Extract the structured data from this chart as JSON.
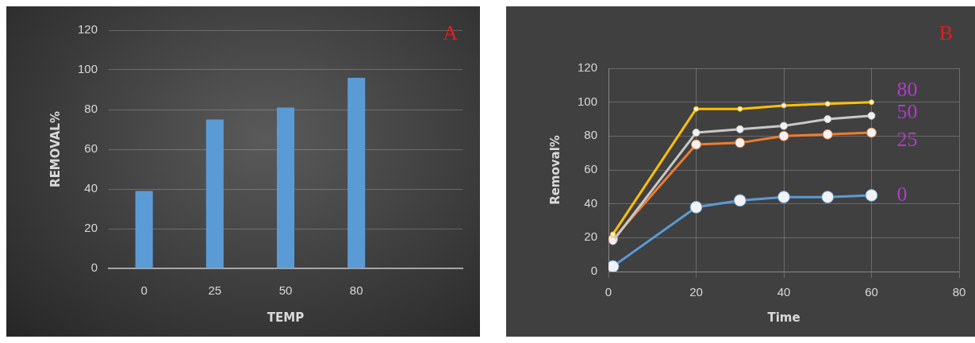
{
  "chart_data": [
    {
      "type": "bar",
      "xlabel": "TEMP",
      "ylabel": "REMOVAL%",
      "annotations": [
        "A"
      ],
      "categories": [
        "0",
        "25",
        "50",
        "80",
        null
      ],
      "values": [
        39,
        75,
        81,
        96,
        null
      ],
      "color": "#5b9bd5",
      "ylim": [
        0,
        120
      ],
      "yticks": [
        0,
        20,
        40,
        60,
        80,
        100,
        120
      ],
      "grid": "y",
      "legend": false
    },
    {
      "type": "line",
      "xlabel": "Time",
      "ylabel": "Removal%",
      "annotations": [
        "B"
      ],
      "xlim": [
        0,
        80
      ],
      "xticks": [
        0,
        20,
        40,
        60,
        80
      ],
      "ylim": [
        0,
        120
      ],
      "yticks": [
        0,
        20,
        40,
        60,
        80,
        100,
        120
      ],
      "grid": true,
      "legend": false,
      "marker": "circle",
      "x": [
        1,
        20,
        30,
        40,
        50,
        60
      ],
      "series": [
        {
          "name": "80",
          "color": "#ffc000",
          "values": [
            22,
            96,
            96,
            98,
            99,
            100
          ]
        },
        {
          "name": "50",
          "color": "#c9c9c9",
          "values": [
            18,
            82,
            84,
            86,
            90,
            92
          ]
        },
        {
          "name": "25",
          "color": "#ed7d31",
          "values": [
            19,
            75,
            76,
            80,
            81,
            82
          ]
        },
        {
          "name": "0",
          "color": "#5b9bd5",
          "values": [
            3,
            38,
            42,
            44,
            44,
            45
          ]
        }
      ]
    }
  ]
}
